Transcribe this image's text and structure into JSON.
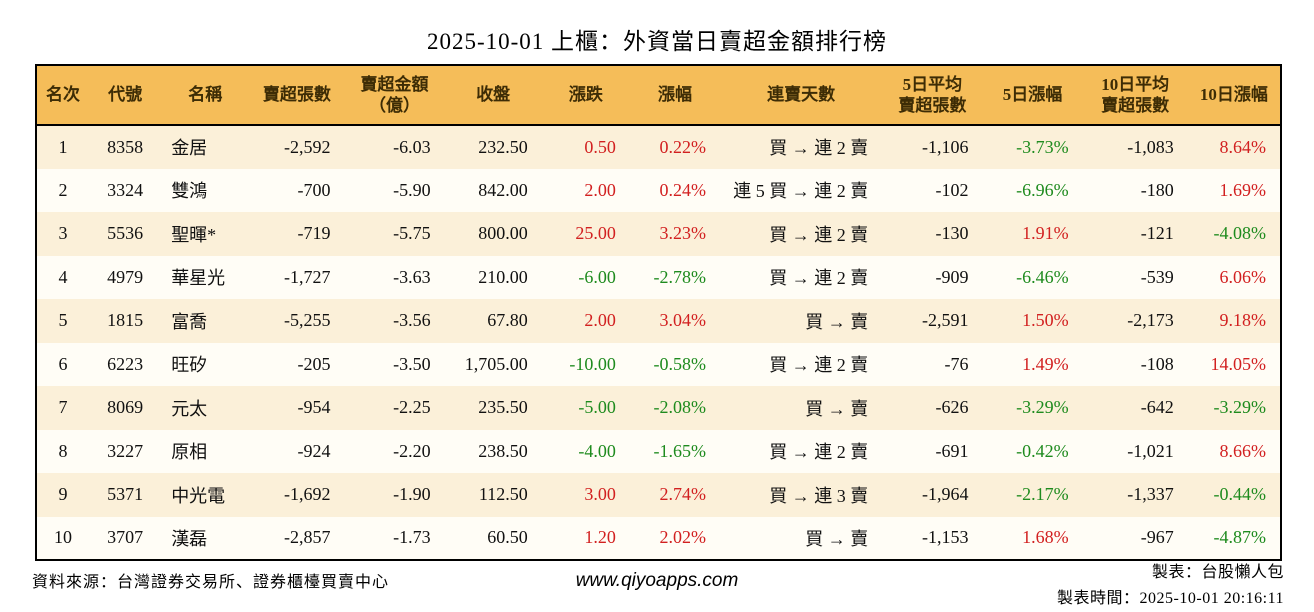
{
  "title": "2025-10-01 上櫃：外資當日賣超金額排行榜",
  "colors": {
    "up": "#d22020",
    "down": "#1e8b1e",
    "header_bg": "#f5bd59",
    "row_odd": "#fbf0d9",
    "row_even": "#fffdf6"
  },
  "table": {
    "columns": [
      {
        "id": "rank",
        "label": "名次",
        "align": "center"
      },
      {
        "id": "code",
        "label": "代號",
        "align": "center"
      },
      {
        "id": "name",
        "label": "名稱",
        "align": "left"
      },
      {
        "id": "sell-volume",
        "label": "賣超張數",
        "align": "right"
      },
      {
        "id": "sell-amount",
        "label": "賣超金額\n（億）",
        "align": "right"
      },
      {
        "id": "close",
        "label": "收盤",
        "align": "right"
      },
      {
        "id": "change",
        "label": "漲跌",
        "align": "right"
      },
      {
        "id": "change-pct",
        "label": "漲幅",
        "align": "right"
      },
      {
        "id": "sell-streak",
        "label": "連賣天數",
        "align": "right"
      },
      {
        "id": "avg5-volume",
        "label": "5日平均\n賣超張數",
        "align": "right"
      },
      {
        "id": "pct-5d",
        "label": "5日漲幅",
        "align": "right"
      },
      {
        "id": "avg10-volume",
        "label": "10日平均\n賣超張數",
        "align": "right"
      },
      {
        "id": "pct-10d",
        "label": "10日漲幅",
        "align": "right"
      }
    ],
    "rows": [
      {
        "cells": [
          {
            "text": "1"
          },
          {
            "text": "8358"
          },
          {
            "text": "金居"
          },
          {
            "text": "-2,592"
          },
          {
            "text": "-6.03"
          },
          {
            "text": "232.50"
          },
          {
            "text": "0.50",
            "color": "up"
          },
          {
            "text": "0.22%",
            "color": "up"
          },
          {
            "text": "買 → 連 2 賣"
          },
          {
            "text": "-1,106"
          },
          {
            "text": "-3.73%",
            "color": "down"
          },
          {
            "text": "-1,083"
          },
          {
            "text": "8.64%",
            "color": "up"
          }
        ]
      },
      {
        "cells": [
          {
            "text": "2"
          },
          {
            "text": "3324"
          },
          {
            "text": "雙鴻"
          },
          {
            "text": "-700"
          },
          {
            "text": "-5.90"
          },
          {
            "text": "842.00"
          },
          {
            "text": "2.00",
            "color": "up"
          },
          {
            "text": "0.24%",
            "color": "up"
          },
          {
            "text": "連 5 買 → 連 2 賣"
          },
          {
            "text": "-102"
          },
          {
            "text": "-6.96%",
            "color": "down"
          },
          {
            "text": "-180"
          },
          {
            "text": "1.69%",
            "color": "up"
          }
        ]
      },
      {
        "cells": [
          {
            "text": "3"
          },
          {
            "text": "5536"
          },
          {
            "text": "聖暉*"
          },
          {
            "text": "-719"
          },
          {
            "text": "-5.75"
          },
          {
            "text": "800.00"
          },
          {
            "text": "25.00",
            "color": "up"
          },
          {
            "text": "3.23%",
            "color": "up"
          },
          {
            "text": "買 → 連 2 賣"
          },
          {
            "text": "-130"
          },
          {
            "text": "1.91%",
            "color": "up"
          },
          {
            "text": "-121"
          },
          {
            "text": "-4.08%",
            "color": "down"
          }
        ]
      },
      {
        "cells": [
          {
            "text": "4"
          },
          {
            "text": "4979"
          },
          {
            "text": "華星光"
          },
          {
            "text": "-1,727"
          },
          {
            "text": "-3.63"
          },
          {
            "text": "210.00"
          },
          {
            "text": "-6.00",
            "color": "down"
          },
          {
            "text": "-2.78%",
            "color": "down"
          },
          {
            "text": "買 → 連 2 賣"
          },
          {
            "text": "-909"
          },
          {
            "text": "-6.46%",
            "color": "down"
          },
          {
            "text": "-539"
          },
          {
            "text": "6.06%",
            "color": "up"
          }
        ]
      },
      {
        "cells": [
          {
            "text": "5"
          },
          {
            "text": "1815"
          },
          {
            "text": "富喬"
          },
          {
            "text": "-5,255"
          },
          {
            "text": "-3.56"
          },
          {
            "text": "67.80"
          },
          {
            "text": "2.00",
            "color": "up"
          },
          {
            "text": "3.04%",
            "color": "up"
          },
          {
            "text": "買 → 賣"
          },
          {
            "text": "-2,591"
          },
          {
            "text": "1.50%",
            "color": "up"
          },
          {
            "text": "-2,173"
          },
          {
            "text": "9.18%",
            "color": "up"
          }
        ]
      },
      {
        "cells": [
          {
            "text": "6"
          },
          {
            "text": "6223"
          },
          {
            "text": "旺矽"
          },
          {
            "text": "-205"
          },
          {
            "text": "-3.50"
          },
          {
            "text": "1,705.00"
          },
          {
            "text": "-10.00",
            "color": "down"
          },
          {
            "text": "-0.58%",
            "color": "down"
          },
          {
            "text": "買 → 連 2 賣"
          },
          {
            "text": "-76"
          },
          {
            "text": "1.49%",
            "color": "up"
          },
          {
            "text": "-108"
          },
          {
            "text": "14.05%",
            "color": "up"
          }
        ]
      },
      {
        "cells": [
          {
            "text": "7"
          },
          {
            "text": "8069"
          },
          {
            "text": "元太"
          },
          {
            "text": "-954"
          },
          {
            "text": "-2.25"
          },
          {
            "text": "235.50"
          },
          {
            "text": "-5.00",
            "color": "down"
          },
          {
            "text": "-2.08%",
            "color": "down"
          },
          {
            "text": "買 → 賣"
          },
          {
            "text": "-626"
          },
          {
            "text": "-3.29%",
            "color": "down"
          },
          {
            "text": "-642"
          },
          {
            "text": "-3.29%",
            "color": "down"
          }
        ]
      },
      {
        "cells": [
          {
            "text": "8"
          },
          {
            "text": "3227"
          },
          {
            "text": "原相"
          },
          {
            "text": "-924"
          },
          {
            "text": "-2.20"
          },
          {
            "text": "238.50"
          },
          {
            "text": "-4.00",
            "color": "down"
          },
          {
            "text": "-1.65%",
            "color": "down"
          },
          {
            "text": "買 → 連 2 賣"
          },
          {
            "text": "-691"
          },
          {
            "text": "-0.42%",
            "color": "down"
          },
          {
            "text": "-1,021"
          },
          {
            "text": "8.66%",
            "color": "up"
          }
        ]
      },
      {
        "cells": [
          {
            "text": "9"
          },
          {
            "text": "5371"
          },
          {
            "text": "中光電"
          },
          {
            "text": "-1,692"
          },
          {
            "text": "-1.90"
          },
          {
            "text": "112.50"
          },
          {
            "text": "3.00",
            "color": "up"
          },
          {
            "text": "2.74%",
            "color": "up"
          },
          {
            "text": "買 → 連 3 賣"
          },
          {
            "text": "-1,964"
          },
          {
            "text": "-2.17%",
            "color": "down"
          },
          {
            "text": "-1,337"
          },
          {
            "text": "-0.44%",
            "color": "down"
          }
        ]
      },
      {
        "cells": [
          {
            "text": "10"
          },
          {
            "text": "3707"
          },
          {
            "text": "漢磊"
          },
          {
            "text": "-2,857"
          },
          {
            "text": "-1.73"
          },
          {
            "text": "60.50"
          },
          {
            "text": "1.20",
            "color": "up"
          },
          {
            "text": "2.02%",
            "color": "up"
          },
          {
            "text": "買 → 賣"
          },
          {
            "text": "-1,153"
          },
          {
            "text": "1.68%",
            "color": "up"
          },
          {
            "text": "-967"
          },
          {
            "text": "-4.87%",
            "color": "down"
          }
        ]
      }
    ]
  },
  "footer": {
    "source": "資料來源：台灣證券交易所、證券櫃檯買賣中心",
    "website": "www.qiyoapps.com",
    "maker": "製表：台股懶人包",
    "made_time": "製表時間：2025-10-01 20:16:11"
  }
}
